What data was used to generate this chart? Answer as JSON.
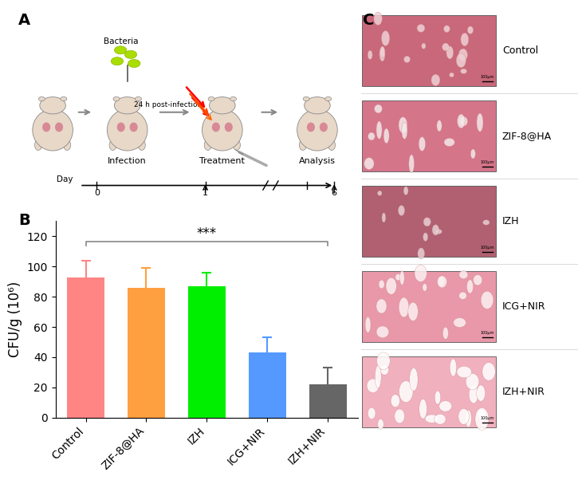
{
  "categories": [
    "Control",
    "ZIF-8@HA",
    "IZH",
    "ICG+NIR",
    "IZH+NIR"
  ],
  "values": [
    93,
    86,
    87,
    43,
    22
  ],
  "errors": [
    11,
    13,
    9,
    10,
    11
  ],
  "bar_colors": [
    "#FF8585",
    "#FFA040",
    "#00EE00",
    "#5599FF",
    "#666666"
  ],
  "error_colors": [
    "#FF8585",
    "#FFA040",
    "#00EE00",
    "#5599FF",
    "#666666"
  ],
  "ylabel": "CFU/g (10⁶)",
  "ylim": [
    0,
    130
  ],
  "yticks": [
    0,
    20,
    40,
    60,
    80,
    100,
    120
  ],
  "significance_label": "***",
  "background_color": "#ffffff",
  "tick_fontsize": 10,
  "label_fontsize": 12,
  "panel_labels": [
    "A",
    "B",
    "C"
  ],
  "tissue_labels": [
    "Control",
    "ZIF-8@HA",
    "IZH",
    "ICG+NIR",
    "IZH+NIR"
  ],
  "schematic_labels": [
    "Infection",
    "Treatment",
    "Analysis"
  ],
  "timeline_days": [
    "0",
    "1",
    "6"
  ],
  "arrow_label": "24 h post-infection"
}
